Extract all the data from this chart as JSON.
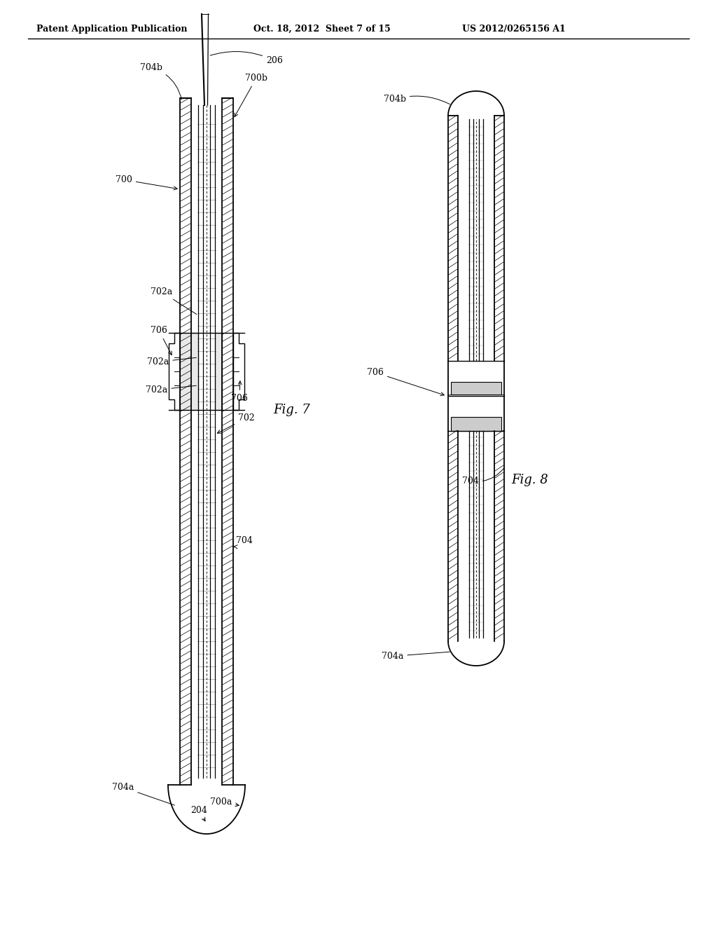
{
  "bg_color": "#ffffff",
  "header_left": "Patent Application Publication",
  "header_mid": "Oct. 18, 2012  Sheet 7 of 15",
  "header_right": "US 2012/0265156 A1",
  "fig7_label": "Fig. 7",
  "fig8_label": "Fig. 8"
}
